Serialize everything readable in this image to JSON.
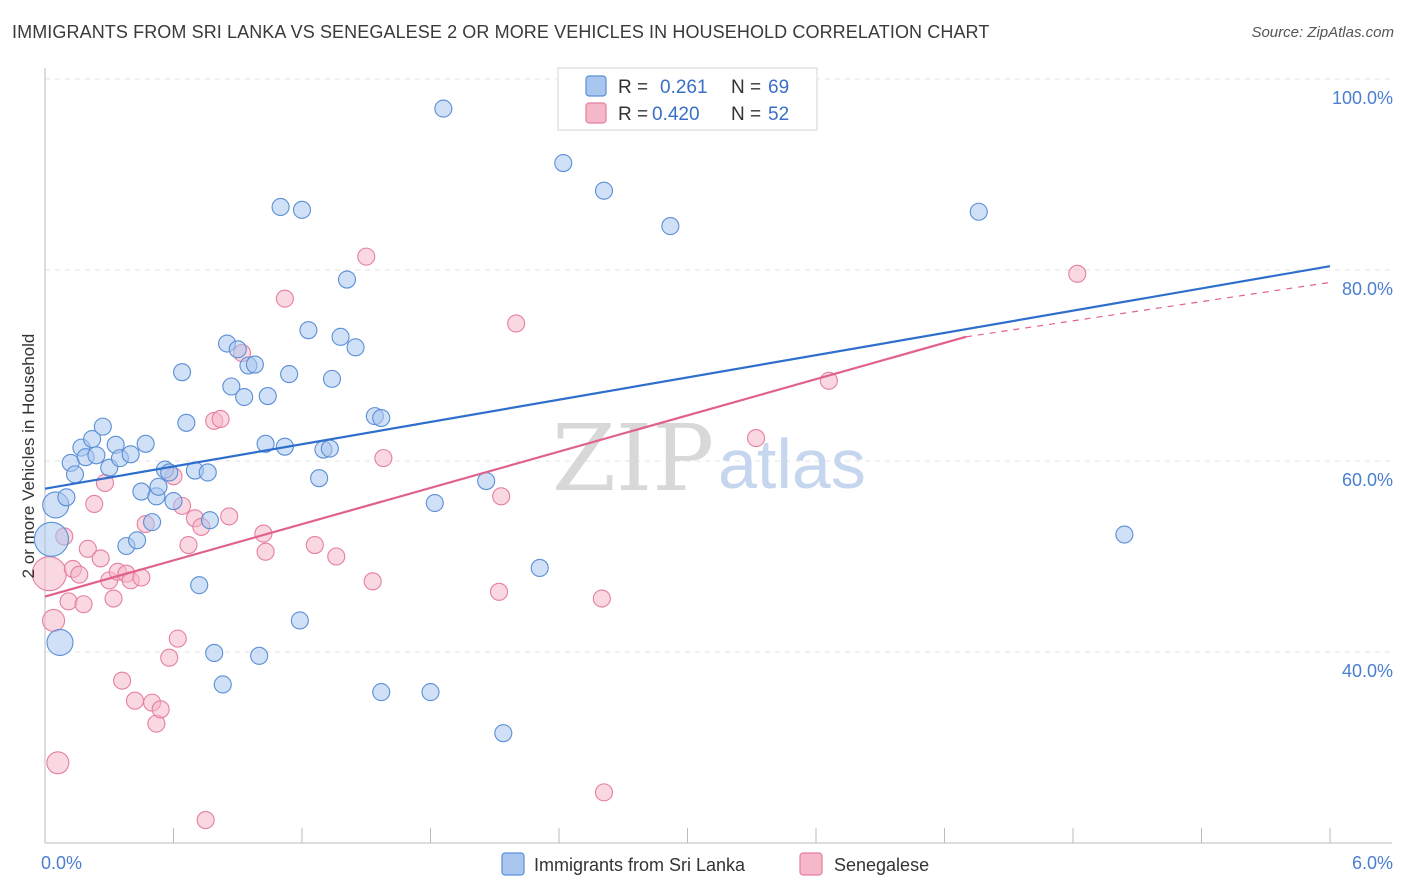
{
  "title": "IMMIGRANTS FROM SRI LANKA VS SENEGALESE 2 OR MORE VEHICLES IN HOUSEHOLD CORRELATION CHART",
  "source": "Source: ZipAtlas.com",
  "watermark": {
    "zip": "ZIP",
    "atlas": "atlas"
  },
  "colors": {
    "blue_fill": "#a9c6ee",
    "blue_stroke": "#5b8fd6",
    "blue_line": "#2f6fcc",
    "pink_fill": "#f5b8c9",
    "pink_stroke": "#e57fa0",
    "pink_line": "#e0628c",
    "grid": "#e3e3e3",
    "tick_text": "#4a7fd0"
  },
  "legend": {
    "rows": [
      {
        "r_label": "R =",
        "r_value": "0.261",
        "n_label": "N =",
        "n_value": "69"
      },
      {
        "r_label": "R =",
        "r_value": "0.420",
        "n_label": "N =",
        "n_value": "52"
      }
    ]
  },
  "bottom_legend": {
    "items": [
      "Immigrants from Sri Lanka",
      "Senegalese"
    ]
  },
  "chart_data": {
    "type": "scatter",
    "title": "IMMIGRANTS FROM SRI LANKA VS SENEGALESE 2 OR MORE VEHICLES IN HOUSEHOLD CORRELATION CHART",
    "xlabel": "",
    "ylabel": "2 or more Vehicles in Household",
    "xlim": [
      0,
      6
    ],
    "ylim": [
      20,
      103
    ],
    "x_tick_labels": [
      {
        "x": 0,
        "label": "0.0%"
      },
      {
        "x": 6,
        "label": "6.0%"
      }
    ],
    "y_ticks": [
      {
        "y": 40,
        "label": "40.0%"
      },
      {
        "y": 60,
        "label": "60.0%"
      },
      {
        "y": 80,
        "label": "80.0%"
      },
      {
        "y": 100,
        "label": "100.0%"
      }
    ],
    "grid": true,
    "legend_position": "top-center",
    "series": [
      {
        "name": "Immigrants from Sri Lanka",
        "color": "blue",
        "trend": {
          "x0": 0,
          "y0": 57.1,
          "x1": 6,
          "y1": 80.4
        },
        "points": [
          {
            "x": 0.03,
            "y": 51.8,
            "big": 3
          },
          {
            "x": 0.05,
            "y": 55.4,
            "big": 2
          },
          {
            "x": 0.07,
            "y": 41.0,
            "big": 2
          },
          {
            "x": 0.1,
            "y": 56.2
          },
          {
            "x": 0.12,
            "y": 59.8
          },
          {
            "x": 0.14,
            "y": 58.6
          },
          {
            "x": 0.17,
            "y": 61.4
          },
          {
            "x": 0.19,
            "y": 60.4
          },
          {
            "x": 0.22,
            "y": 62.3
          },
          {
            "x": 0.24,
            "y": 60.6
          },
          {
            "x": 0.27,
            "y": 63.6
          },
          {
            "x": 0.3,
            "y": 59.3
          },
          {
            "x": 0.33,
            "y": 61.7
          },
          {
            "x": 0.35,
            "y": 60.3
          },
          {
            "x": 0.38,
            "y": 51.1
          },
          {
            "x": 0.4,
            "y": 60.7
          },
          {
            "x": 0.43,
            "y": 51.7
          },
          {
            "x": 0.45,
            "y": 56.8
          },
          {
            "x": 0.47,
            "y": 61.8
          },
          {
            "x": 0.5,
            "y": 53.6
          },
          {
            "x": 0.52,
            "y": 56.3
          },
          {
            "x": 0.53,
            "y": 57.3
          },
          {
            "x": 0.56,
            "y": 59.1
          },
          {
            "x": 0.58,
            "y": 58.8
          },
          {
            "x": 0.6,
            "y": 55.8
          },
          {
            "x": 0.64,
            "y": 69.3
          },
          {
            "x": 0.66,
            "y": 64.0
          },
          {
            "x": 0.7,
            "y": 59.0
          },
          {
            "x": 0.72,
            "y": 47.0
          },
          {
            "x": 0.76,
            "y": 58.8
          },
          {
            "x": 0.77,
            "y": 53.8
          },
          {
            "x": 0.79,
            "y": 39.9
          },
          {
            "x": 0.83,
            "y": 36.6
          },
          {
            "x": 0.85,
            "y": 72.3
          },
          {
            "x": 0.87,
            "y": 67.8
          },
          {
            "x": 0.9,
            "y": 71.7
          },
          {
            "x": 0.93,
            "y": 66.7
          },
          {
            "x": 0.95,
            "y": 70.0
          },
          {
            "x": 0.98,
            "y": 70.1
          },
          {
            "x": 1.0,
            "y": 39.6
          },
          {
            "x": 1.03,
            "y": 61.8
          },
          {
            "x": 1.04,
            "y": 66.8
          },
          {
            "x": 1.1,
            "y": 86.6
          },
          {
            "x": 1.12,
            "y": 61.5
          },
          {
            "x": 1.14,
            "y": 69.1
          },
          {
            "x": 1.19,
            "y": 43.3
          },
          {
            "x": 1.2,
            "y": 86.3
          },
          {
            "x": 1.23,
            "y": 73.7
          },
          {
            "x": 1.28,
            "y": 58.2
          },
          {
            "x": 1.3,
            "y": 61.2
          },
          {
            "x": 1.33,
            "y": 61.3
          },
          {
            "x": 1.34,
            "y": 68.6
          },
          {
            "x": 1.38,
            "y": 73.0
          },
          {
            "x": 1.41,
            "y": 79.0
          },
          {
            "x": 1.45,
            "y": 71.9
          },
          {
            "x": 1.54,
            "y": 64.7
          },
          {
            "x": 1.57,
            "y": 64.5
          },
          {
            "x": 1.57,
            "y": 35.8
          },
          {
            "x": 1.8,
            "y": 35.8
          },
          {
            "x": 1.82,
            "y": 55.6
          },
          {
            "x": 1.86,
            "y": 96.9
          },
          {
            "x": 2.06,
            "y": 57.9
          },
          {
            "x": 2.14,
            "y": 31.5
          },
          {
            "x": 2.31,
            "y": 48.8
          },
          {
            "x": 2.42,
            "y": 91.2
          },
          {
            "x": 2.61,
            "y": 88.3
          },
          {
            "x": 2.92,
            "y": 84.6
          },
          {
            "x": 4.36,
            "y": 86.1
          },
          {
            "x": 5.04,
            "y": 52.3
          }
        ]
      },
      {
        "name": "Senegalese",
        "color": "pink",
        "trend": {
          "x0": 0,
          "y0": 45.8,
          "x1": 4.3,
          "y1": 73.0
        },
        "trend_dash": {
          "x0": 4.3,
          "y0": 73.0,
          "x1": 6,
          "y1": 78.7
        },
        "points": [
          {
            "x": 0.02,
            "y": 48.2,
            "big": 3
          },
          {
            "x": 0.04,
            "y": 43.3,
            "big": 1
          },
          {
            "x": 0.06,
            "y": 28.4,
            "big": 1
          },
          {
            "x": 0.09,
            "y": 52.1
          },
          {
            "x": 0.11,
            "y": 45.3
          },
          {
            "x": 0.13,
            "y": 48.7
          },
          {
            "x": 0.16,
            "y": 48.1
          },
          {
            "x": 0.18,
            "y": 45.0
          },
          {
            "x": 0.2,
            "y": 50.8
          },
          {
            "x": 0.23,
            "y": 55.5
          },
          {
            "x": 0.26,
            "y": 49.8
          },
          {
            "x": 0.28,
            "y": 57.7
          },
          {
            "x": 0.3,
            "y": 47.5
          },
          {
            "x": 0.32,
            "y": 45.6
          },
          {
            "x": 0.34,
            "y": 48.4
          },
          {
            "x": 0.36,
            "y": 37.0
          },
          {
            "x": 0.38,
            "y": 48.2
          },
          {
            "x": 0.4,
            "y": 47.5
          },
          {
            "x": 0.42,
            "y": 34.9
          },
          {
            "x": 0.45,
            "y": 47.8
          },
          {
            "x": 0.47,
            "y": 53.4
          },
          {
            "x": 0.5,
            "y": 34.7
          },
          {
            "x": 0.52,
            "y": 32.5
          },
          {
            "x": 0.54,
            "y": 34.0
          },
          {
            "x": 0.58,
            "y": 39.4
          },
          {
            "x": 0.6,
            "y": 58.4
          },
          {
            "x": 0.62,
            "y": 41.4
          },
          {
            "x": 0.64,
            "y": 55.3
          },
          {
            "x": 0.67,
            "y": 51.2
          },
          {
            "x": 0.7,
            "y": 54.0
          },
          {
            "x": 0.73,
            "y": 53.1
          },
          {
            "x": 0.75,
            "y": 22.4
          },
          {
            "x": 0.79,
            "y": 64.2
          },
          {
            "x": 0.82,
            "y": 64.4
          },
          {
            "x": 0.86,
            "y": 54.2
          },
          {
            "x": 0.92,
            "y": 71.3
          },
          {
            "x": 1.02,
            "y": 52.4
          },
          {
            "x": 1.03,
            "y": 50.5
          },
          {
            "x": 1.12,
            "y": 77.0
          },
          {
            "x": 1.26,
            "y": 51.2
          },
          {
            "x": 1.36,
            "y": 50.0
          },
          {
            "x": 1.5,
            "y": 81.4
          },
          {
            "x": 1.53,
            "y": 47.4
          },
          {
            "x": 1.58,
            "y": 60.3
          },
          {
            "x": 2.12,
            "y": 46.3
          },
          {
            "x": 2.13,
            "y": 56.3
          },
          {
            "x": 2.2,
            "y": 74.4
          },
          {
            "x": 2.6,
            "y": 45.6
          },
          {
            "x": 2.61,
            "y": 25.3
          },
          {
            "x": 3.32,
            "y": 62.4
          },
          {
            "x": 3.66,
            "y": 68.4
          },
          {
            "x": 4.82,
            "y": 79.6
          }
        ]
      }
    ]
  }
}
